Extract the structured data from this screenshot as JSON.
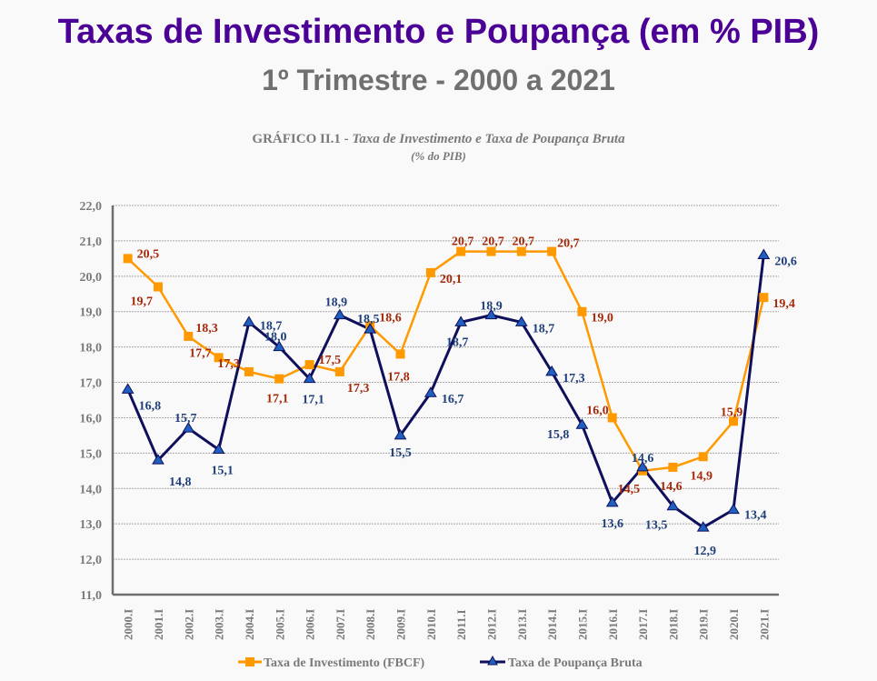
{
  "header": {
    "title": "Taxas de Investimento e Poupança  (em % PIB)",
    "subtitle": "1º Trimestre - 2000 a 2021"
  },
  "chart_data": {
    "type": "line",
    "title_prefix": "GRÁFICO II.1 - ",
    "title": "Taxa de Investimento e Taxa de Poupança Bruta",
    "subtitle": "(% do PIB)",
    "xlabel": "",
    "ylabel": "",
    "ylim": [
      11.0,
      22.0
    ],
    "yticks": [
      "22,0",
      "21,0",
      "20,0",
      "19,0",
      "18,0",
      "17,0",
      "16,0",
      "15,0",
      "14,0",
      "13,0",
      "12,0",
      "11,0"
    ],
    "grid": true,
    "legend_position": "bottom",
    "categories": [
      "2000.I",
      "2001.I",
      "2002.I",
      "2003.I",
      "2004.I",
      "2005.I",
      "2006.I",
      "2007.I",
      "2008.I",
      "2009.I",
      "2010.I",
      "2011.I",
      "2012.I",
      "2013.I",
      "2014.I",
      "2015.I",
      "2016.I",
      "2017.I",
      "2018.I",
      "2019.I",
      "2020.I",
      "2021.I"
    ],
    "series": [
      {
        "name": "Taxa de Investimento (FBCF)",
        "color": "#ff9900",
        "label_color": "#a52a0a",
        "marker": "square",
        "values": [
          20.5,
          19.7,
          18.3,
          17.7,
          17.3,
          17.1,
          17.5,
          17.3,
          18.6,
          17.8,
          20.1,
          20.7,
          20.7,
          20.7,
          20.7,
          19.0,
          16.0,
          14.5,
          14.6,
          14.9,
          15.9,
          19.4
        ],
        "labels": [
          "20,5",
          "19,7",
          "18,3",
          "17,7",
          "17,3",
          "17,1",
          "17,5",
          "17,3",
          "18,6",
          "17,8",
          "20,1",
          "20,7",
          "20,7",
          "20,7",
          "20,7",
          "19,0",
          "16,0",
          "14,5",
          "14,6",
          "14,9",
          "15,9",
          "19,4"
        ]
      },
      {
        "name": "Taxa de Poupança Bruta",
        "color": "#0f0f5c",
        "marker_color": "#1f5fbf",
        "label_color": "#1f3f7a",
        "marker": "triangle",
        "values": [
          16.8,
          14.8,
          15.7,
          15.1,
          18.7,
          18.0,
          17.1,
          18.9,
          18.5,
          15.5,
          16.7,
          18.7,
          18.9,
          18.7,
          17.3,
          15.8,
          13.6,
          14.6,
          13.5,
          12.9,
          13.4,
          20.6
        ],
        "labels": [
          "16,8",
          "14,8",
          "15,7",
          "15,1",
          "18,7",
          "18,0",
          "17,1",
          "18,9",
          "18,5",
          "15,5",
          "16,7",
          "18,7",
          "18,9",
          "18,7",
          "17,3",
          "15,8",
          "13,6",
          "14,6",
          "13,5",
          "12,9",
          "13,4",
          "20,6"
        ]
      }
    ]
  }
}
